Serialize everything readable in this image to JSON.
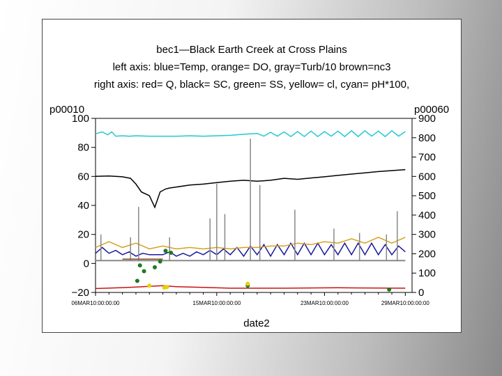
{
  "chart_data": {
    "type": "line",
    "title": "bec1—Black Earth Creek at Cross Plains",
    "subtitle_lines": [
      "left axis: blue=Temp, orange= DO, gray=Turb/10 brown=nc3",
      "right axis: red= Q, black= SC, green= SS, yellow= cl, cyan= pH*100,"
    ],
    "xlabel": "date2",
    "left_axis_label": "p00010",
    "right_axis_label": "p00060",
    "left_ticks": [
      "100",
      "80",
      "60",
      "40",
      "20",
      "0",
      "−20"
    ],
    "right_ticks": [
      "900",
      "800",
      "700",
      "600",
      "500",
      "400",
      "300",
      "200",
      "100",
      "0"
    ],
    "x_ticks": [
      "06MAR10:00:00:00",
      "15MAR10:00:00:00",
      "23MAR10:00:00:00",
      "29MAR10:00:00:00"
    ],
    "x_range": [
      "2010-03-06",
      "2010-03-30"
    ],
    "left_ylim": [
      -20,
      100
    ],
    "right_ylim": [
      0,
      900
    ],
    "series": [
      {
        "name": "pH*100",
        "axis": "right",
        "color": "#22c8d0",
        "x": [
          0,
          0.5,
          0.9,
          1.2,
          1.5,
          2.0,
          2.5,
          3.0,
          4.0,
          5.0,
          6.0,
          7.0,
          8.0,
          9.0,
          10.0,
          11.0,
          12.0,
          12.5,
          13.0,
          13.5,
          14.0,
          14.5,
          15.0,
          15.5,
          16.0,
          16.5,
          17.0,
          17.5,
          18.0,
          18.5,
          19.0,
          19.5,
          20.0,
          20.5,
          21.0,
          21.5,
          22.0,
          22.5,
          23.0
        ],
        "values": [
          820,
          830,
          815,
          830,
          808,
          810,
          808,
          810,
          808,
          808,
          808,
          810,
          808,
          810,
          812,
          818,
          822,
          808,
          828,
          808,
          830,
          806,
          832,
          806,
          834,
          806,
          832,
          808,
          834,
          806,
          836,
          806,
          836,
          808,
          834,
          806,
          836,
          808,
          832
        ]
      },
      {
        "name": "SC",
        "axis": "right",
        "color": "#000000",
        "x": [
          0,
          1.0,
          2.0,
          2.6,
          3.0,
          3.4,
          4.0,
          4.4,
          4.8,
          5.2,
          5.5,
          6.0,
          7.0,
          8.0,
          9.0,
          10.0,
          11.0,
          12.0,
          13.0,
          14.0,
          15.0,
          16.0,
          17.0,
          18.0,
          19.0,
          20.0,
          21.0,
          22.0,
          23.0
        ],
        "values": [
          600,
          602,
          598,
          590,
          560,
          520,
          500,
          440,
          520,
          535,
          540,
          545,
          555,
          560,
          568,
          575,
          580,
          575,
          580,
          590,
          585,
          592,
          598,
          605,
          612,
          618,
          625,
          630,
          635
        ]
      },
      {
        "name": "Temp",
        "axis": "left",
        "color": "#1a1a9c",
        "x": [
          0,
          0.5,
          1,
          1.5,
          2,
          2.5,
          3,
          3.5,
          4,
          4.5,
          5,
          5.5,
          6,
          6.5,
          7,
          7.5,
          8,
          8.5,
          9,
          9.5,
          10,
          10.5,
          11,
          11.5,
          12,
          12.5,
          13,
          13.5,
          14,
          14.5,
          15,
          15.5,
          16,
          16.5,
          17,
          17.5,
          18,
          18.5,
          19,
          19.5,
          20,
          20.5,
          21,
          21.5,
          22,
          22.5,
          23
        ],
        "values": [
          7,
          11,
          7,
          9,
          6,
          8,
          5,
          7,
          6,
          6,
          6,
          8,
          5,
          7,
          5,
          8,
          6,
          9,
          6,
          10,
          6,
          11,
          5,
          12,
          6,
          13,
          5,
          13,
          6,
          14,
          6,
          14,
          6,
          14,
          6,
          13,
          6,
          14,
          6,
          14,
          6,
          14,
          6,
          13,
          6,
          12,
          8
        ]
      },
      {
        "name": "DO",
        "axis": "left",
        "color": "#d6a020",
        "x": [
          0,
          1,
          2,
          3,
          4,
          5,
          6,
          7,
          8,
          9,
          10,
          11,
          12,
          13,
          14,
          15,
          16,
          17,
          18,
          19,
          20,
          21,
          22,
          23
        ],
        "values": [
          11,
          15,
          11,
          14,
          10,
          12,
          10,
          11,
          10,
          11,
          10,
          11,
          11,
          12,
          12,
          14,
          13,
          15,
          14,
          17,
          14,
          18,
          14,
          18
        ]
      },
      {
        "name": "Turb/10",
        "axis": "left",
        "color": "#888888",
        "x": [
          0,
          2,
          4,
          6,
          8,
          10,
          12,
          14,
          16,
          18,
          20,
          22,
          23
        ],
        "values": [
          2,
          2,
          2,
          2,
          2,
          2,
          2,
          2,
          2,
          2,
          2,
          2,
          2
        ],
        "spikes_x": [
          0.4,
          2.6,
          3.2,
          5.5,
          8.5,
          9.0,
          9.6,
          11.5,
          12.2,
          14.8,
          17.7,
          19.6,
          21.6,
          22.4
        ],
        "spikes_y": [
          20,
          18,
          39,
          18,
          31,
          55,
          34,
          86,
          54,
          37,
          24,
          21,
          20,
          36
        ]
      },
      {
        "name": "nc3",
        "axis": "left",
        "color": "#8b4a2a",
        "x": [
          2.0,
          5.0
        ],
        "values": [
          3,
          3
        ]
      },
      {
        "name": "Q",
        "axis": "right",
        "color": "#cc1111",
        "x": [
          0,
          2,
          3,
          5,
          6,
          8,
          10,
          14,
          18,
          23
        ],
        "values": [
          20,
          25,
          28,
          35,
          30,
          26,
          22,
          22,
          24,
          22
        ]
      },
      {
        "name": "SS",
        "axis": "right",
        "color": "#1f7a1f",
        "x": [
          3.1,
          3.3,
          3.6,
          4.4,
          4.8,
          5.2,
          5.6,
          11.3,
          21.8
        ],
        "values": [
          60,
          140,
          110,
          130,
          160,
          215,
          205,
          35,
          15
        ]
      },
      {
        "name": "cl",
        "axis": "right",
        "color": "#e6d200",
        "x": [
          4.0,
          5.1,
          5.3,
          11.3
        ],
        "values": [
          35,
          25,
          28,
          45
        ]
      }
    ]
  }
}
